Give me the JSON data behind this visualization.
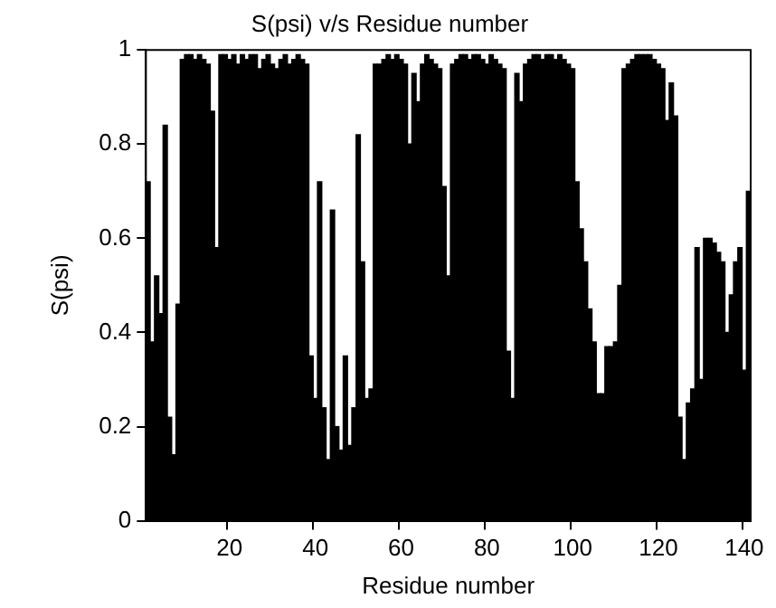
{
  "chart_data": {
    "type": "bar",
    "title": "S(psi) v/s Residue number",
    "xlabel": "Residue number",
    "ylabel": "S(psi)",
    "categories": [
      null,
      null,
      null,
      null,
      null,
      null,
      null,
      null,
      null,
      null,
      null,
      null,
      null,
      null,
      null,
      null,
      null,
      null,
      null,
      "20",
      null,
      null,
      null,
      null,
      null,
      null,
      null,
      null,
      null,
      null,
      null,
      null,
      null,
      null,
      null,
      null,
      null,
      null,
      null,
      "40",
      null,
      null,
      null,
      null,
      null,
      null,
      null,
      null,
      null,
      null,
      null,
      null,
      null,
      null,
      null,
      null,
      null,
      null,
      null,
      "60",
      null,
      null,
      null,
      null,
      null,
      null,
      null,
      null,
      null,
      null,
      null,
      null,
      null,
      null,
      null,
      null,
      null,
      null,
      null,
      "80",
      null,
      null,
      null,
      null,
      null,
      null,
      null,
      null,
      null,
      null,
      null,
      null,
      null,
      null,
      null,
      null,
      null,
      null,
      null,
      "100",
      null,
      null,
      null,
      null,
      null,
      null,
      null,
      null,
      null,
      null,
      null,
      null,
      null,
      null,
      null,
      null,
      null,
      null,
      null,
      "120",
      null,
      null,
      null,
      null,
      null,
      null,
      null,
      null,
      null,
      null,
      null,
      null,
      null,
      null,
      null,
      null,
      null,
      null,
      null,
      "140",
      null
    ],
    "values": [
      0.72,
      0.38,
      0.52,
      0.44,
      0.84,
      0.22,
      0.14,
      0.46,
      0.98,
      0.99,
      0.99,
      0.98,
      0.99,
      0.98,
      0.97,
      0.87,
      0.58,
      0.99,
      0.99,
      0.98,
      0.99,
      0.97,
      0.99,
      0.98,
      0.99,
      0.99,
      0.96,
      0.98,
      0.99,
      0.97,
      0.96,
      0.98,
      0.99,
      0.97,
      0.98,
      0.99,
      0.98,
      0.97,
      0.35,
      0.26,
      0.72,
      0.24,
      0.13,
      0.66,
      0.2,
      0.15,
      0.35,
      0.16,
      0.24,
      0.82,
      0.55,
      0.26,
      0.28,
      0.97,
      0.97,
      0.98,
      0.99,
      0.98,
      0.99,
      0.98,
      0.97,
      0.8,
      0.95,
      0.89,
      0.97,
      0.99,
      0.98,
      0.97,
      0.96,
      0.71,
      0.52,
      0.97,
      0.98,
      0.99,
      0.99,
      0.98,
      0.99,
      0.99,
      0.98,
      0.97,
      0.99,
      0.98,
      0.97,
      0.96,
      0.36,
      0.26,
      0.95,
      0.89,
      0.97,
      0.98,
      0.99,
      0.99,
      0.98,
      0.99,
      0.99,
      0.98,
      0.99,
      0.98,
      0.97,
      0.96,
      0.72,
      0.62,
      0.55,
      0.45,
      0.38,
      0.27,
      0.27,
      0.37,
      0.37,
      0.38,
      0.5,
      0.96,
      0.97,
      0.98,
      0.99,
      0.99,
      0.99,
      0.99,
      0.98,
      0.97,
      0.96,
      0.85,
      0.93,
      0.86,
      0.22,
      0.13,
      0.25,
      0.28,
      0.58,
      0.3,
      0.6,
      0.6,
      0.59,
      0.57,
      0.55,
      0.4,
      0.48,
      0.55,
      0.58,
      0.32,
      0.7
    ],
    "color": "#000000",
    "ylim": [
      0,
      1
    ],
    "yticks": [
      0,
      0.2,
      0.4,
      0.6,
      0.8,
      1
    ],
    "grid": false,
    "legend": false
  }
}
